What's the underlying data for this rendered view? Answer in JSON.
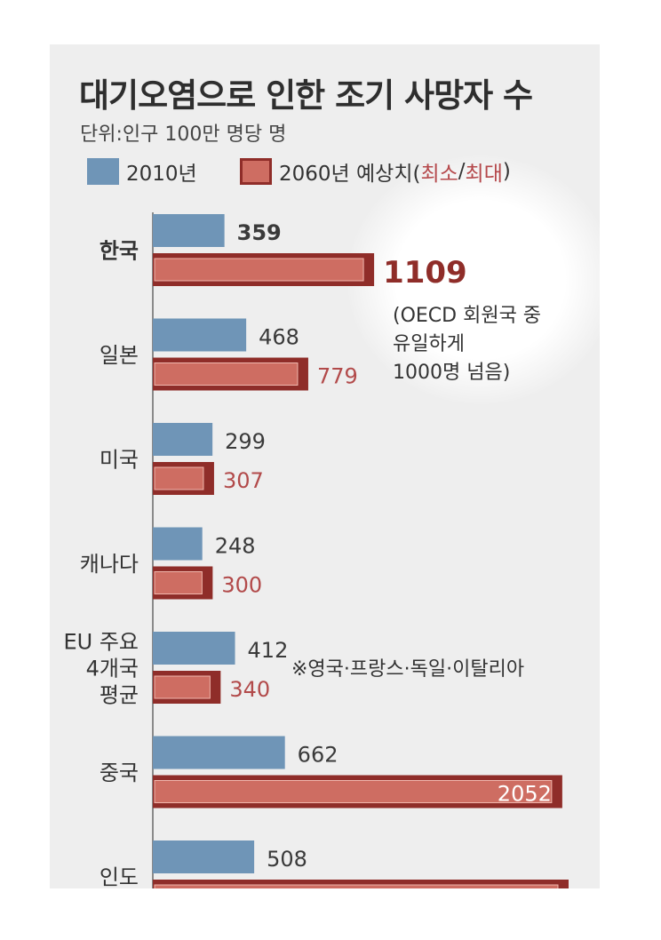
{
  "title": "대기오염으로 인한 조기 사망자 수",
  "unit": "단위:인구 100만 명당 명",
  "legend": {
    "series1": "2010년",
    "series2_prefix": "2060년 예상치(",
    "series2_min": "최소",
    "series2_sep": "/",
    "series2_max": "최대",
    "series2_suffix": ")"
  },
  "annotations": {
    "korea_note": [
      "(OECD 회원국 중",
      "유일하게",
      "1000명 넘음)"
    ],
    "eu_note": "※영국·프랑스·독일·이탈리아"
  },
  "colors": {
    "series1": "#6f95b7",
    "series2_min": "#ce6d62",
    "series2_max": "#8f2d29",
    "label_red": "#b24a4a"
  },
  "chart_data": {
    "type": "bar",
    "orientation": "horizontal",
    "categories": [
      "한국",
      "일본",
      "미국",
      "캐나다",
      "EU 주요 4개국 평균",
      "중국",
      "인도"
    ],
    "category_lines": [
      [
        "한국"
      ],
      [
        "일본"
      ],
      [
        "미국"
      ],
      [
        "캐나다"
      ],
      [
        "EU 주요",
        "4개국",
        "평균"
      ],
      [
        "중국"
      ],
      [
        "인도"
      ]
    ],
    "series": [
      {
        "name": "2010년",
        "values": [
          359,
          468,
          299,
          248,
          412,
          662,
          508
        ]
      },
      {
        "name": "2060년 예상치 최대",
        "values": [
          1109,
          779,
          307,
          300,
          340,
          2052,
          null
        ]
      }
    ],
    "value_labels": {
      "series1": [
        "359",
        "468",
        "299",
        "248",
        "412",
        "662",
        "508"
      ],
      "series2": [
        "1109",
        "779",
        "307",
        "300",
        "340",
        "2052",
        ""
      ]
    },
    "ylabel": "",
    "xlabel": ""
  }
}
